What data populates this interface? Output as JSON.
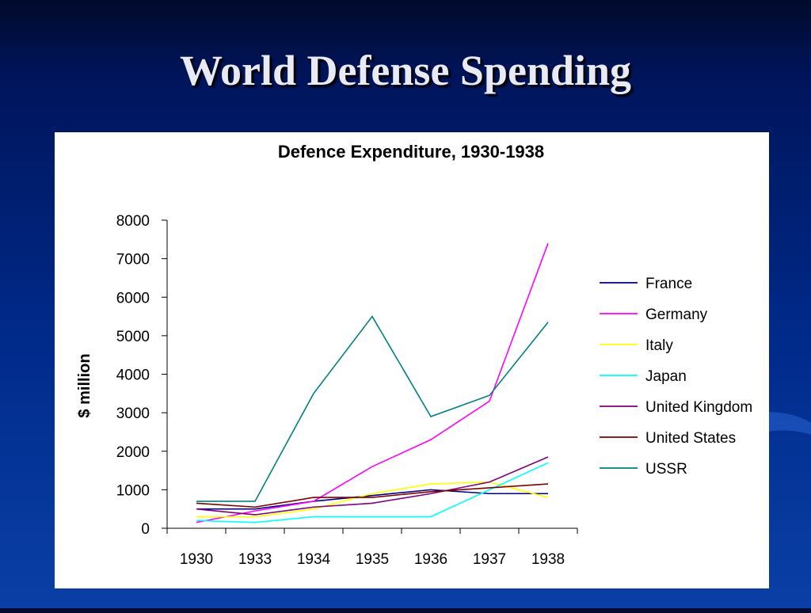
{
  "slide": {
    "title": "World Defense Spending"
  },
  "colors": {
    "background": "#00207a",
    "title_text": "#e8eaf6",
    "panel": "#ffffff"
  },
  "chart_data": {
    "type": "line",
    "title": "Defence Expenditure, 1930-1938",
    "xlabel": "",
    "ylabel": "$ million",
    "ylim": [
      0,
      8000
    ],
    "yticks": [
      0,
      1000,
      2000,
      3000,
      4000,
      5000,
      6000,
      7000,
      8000
    ],
    "categories": [
      "1930",
      "1933",
      "1934",
      "1935",
      "1936",
      "1937",
      "1938"
    ],
    "grid": false,
    "legend_position": "right",
    "series": [
      {
        "name": "France",
        "color": "#000080",
        "values": [
          500,
          500,
          700,
          850,
          1000,
          900,
          900
        ]
      },
      {
        "name": "Germany",
        "color": "#ff00ff",
        "values": [
          150,
          450,
          700,
          1600,
          2300,
          3300,
          7400
        ]
      },
      {
        "name": "Italy",
        "color": "#ffff00",
        "values": [
          300,
          300,
          500,
          900,
          1150,
          1200,
          800
        ]
      },
      {
        "name": "Japan",
        "color": "#00ffff",
        "values": [
          200,
          150,
          300,
          300,
          300,
          1000,
          1700
        ]
      },
      {
        "name": "United Kingdom",
        "color": "#800080",
        "values": [
          500,
          350,
          550,
          650,
          900,
          1200,
          1850
        ]
      },
      {
        "name": "United States",
        "color": "#800000",
        "values": [
          650,
          550,
          800,
          800,
          950,
          1050,
          1150
        ]
      },
      {
        "name": "USSR",
        "color": "#008080",
        "values": [
          700,
          700,
          3500,
          5500,
          2900,
          3450,
          5350
        ]
      }
    ]
  }
}
